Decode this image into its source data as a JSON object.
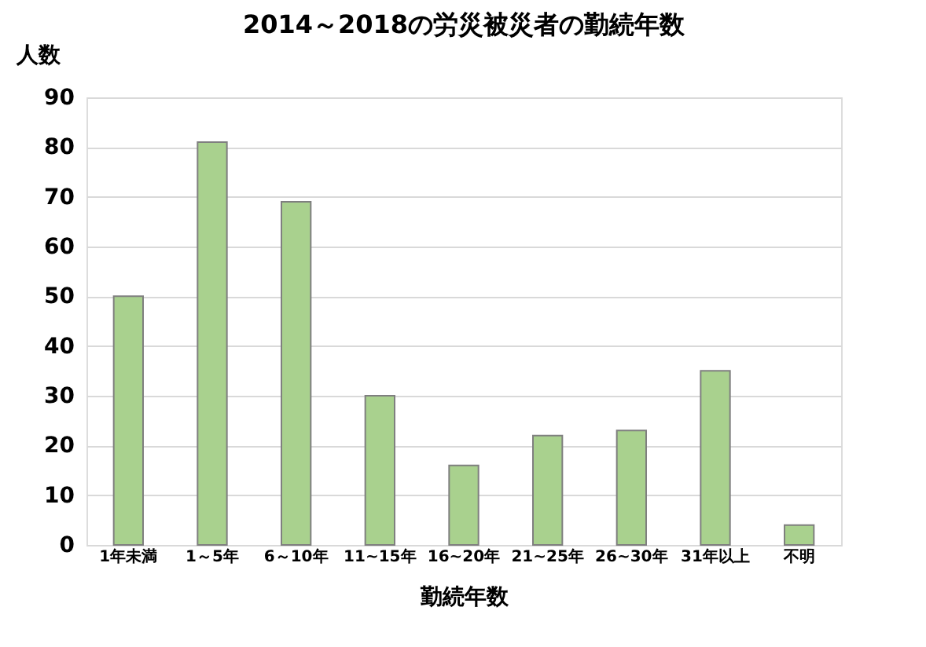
{
  "chart_data": {
    "type": "bar",
    "title": "2014～2018の労災被災者の勤続年数",
    "xlabel": "勤続年数",
    "ylabel": "人数",
    "categories": [
      "1年未満",
      "1～5年",
      "6～10年",
      "11~15年",
      "16~20年",
      "21~25年",
      "26~30年",
      "31年以上",
      "不明"
    ],
    "values": [
      50,
      81,
      69,
      30,
      16,
      22,
      23,
      35,
      4
    ],
    "color": "#a9d18e",
    "ylim": [
      0,
      90
    ],
    "yticks": [
      0,
      10,
      20,
      30,
      40,
      50,
      60,
      70,
      80,
      90
    ],
    "grid": "y"
  }
}
